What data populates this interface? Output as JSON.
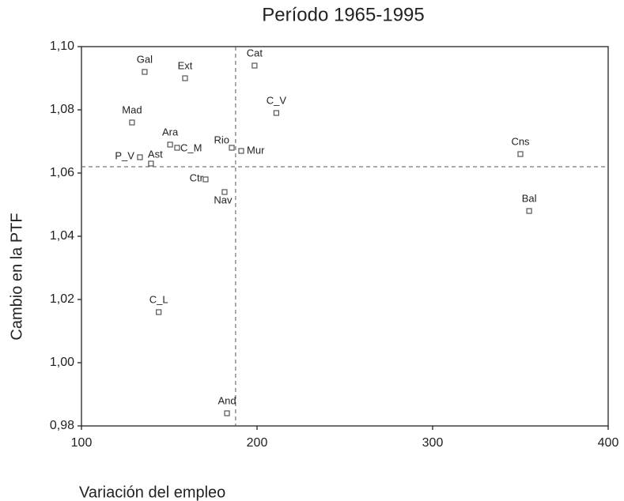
{
  "chart_data": {
    "type": "scatter",
    "title": "Período 1965-1995",
    "x_label": "Variación del empleo",
    "y_label": "Cambio en la PTF",
    "labels": [
      "Gal",
      "Ext",
      "Cat",
      "C_V",
      "Mad",
      "Ara",
      "C_M",
      "Rio",
      "Mur",
      "P_V",
      "Ast",
      "Cns",
      "Ctr",
      "Nav",
      "Bal",
      "C_L",
      "And"
    ],
    "x": [
      136,
      159,
      198.6,
      211,
      128.8,
      150.5,
      154.5,
      185.6,
      191,
      133.3,
      139.6,
      350,
      170.7,
      181.5,
      355,
      144,
      182.9
    ],
    "values": [
      1.092,
      1.09,
      1.094,
      1.079,
      1.076,
      1.069,
      1.068,
      1.068,
      1.067,
      1.065,
      1.063,
      1.066,
      1.058,
      1.054,
      1.048,
      1.016,
      0.984
    ],
    "color": "#555555",
    "reference_x": 187.8,
    "reference_y": 1.062,
    "xlim": [
      100,
      400
    ],
    "xticks": [
      100,
      200,
      300,
      400
    ],
    "ylim": [
      0.98,
      1.1
    ],
    "yticks": [
      {
        "value": 0.98,
        "label": "0,98"
      },
      {
        "value": 1.0,
        "label": "1,00"
      },
      {
        "value": 1.02,
        "label": "1,02"
      },
      {
        "value": 1.04,
        "label": "1,04"
      },
      {
        "value": 1.06,
        "label": "1,06"
      },
      {
        "value": 1.08,
        "label": "1,08"
      },
      {
        "value": 1.1,
        "label": "1,10"
      }
    ]
  }
}
